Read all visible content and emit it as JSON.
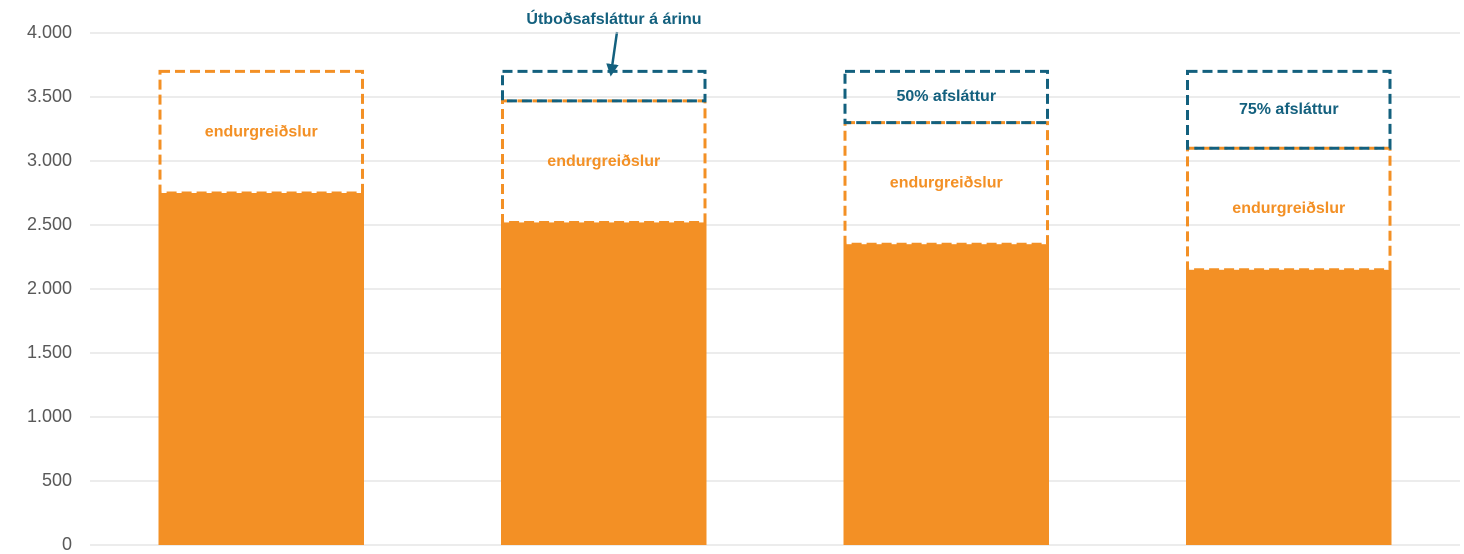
{
  "chart_data": {
    "type": "stacked_bar",
    "categories": [
      null,
      null,
      null,
      null
    ],
    "series": [
      {
        "color": "#f39025",
        "style": "solid",
        "values": [
          2750,
          2520,
          2350,
          2150
        ]
      },
      {
        "color": "#f39025",
        "style": "dashed",
        "values": [
          950,
          950,
          950,
          950
        ],
        "labels": [
          "endurgreiðslur",
          "endurgreiðslur",
          "endurgreiðslur",
          "endurgreiðslur"
        ]
      },
      {
        "color": "#13607e",
        "style": "dashed",
        "values": [
          null,
          230,
          400,
          600
        ],
        "labels": [
          null,
          null,
          "50% afsláttur",
          "75% afsláttur"
        ]
      }
    ],
    "annotation": "Útboðsafsláttur á árinu",
    "ylim": [
      0,
      4000
    ],
    "yticks": [
      0,
      500,
      {
        "value": 1000,
        "label": "1.000"
      },
      {
        "value": 1500,
        "label": "1.500"
      },
      {
        "value": 2000,
        "label": "2.000"
      },
      {
        "value": 2500,
        "label": "2.500"
      },
      {
        "value": 3000,
        "label": "3.000"
      },
      {
        "value": 3500,
        "label": "3.500"
      },
      {
        "value": 4000,
        "label": "4.000"
      }
    ],
    "grid": true
  }
}
